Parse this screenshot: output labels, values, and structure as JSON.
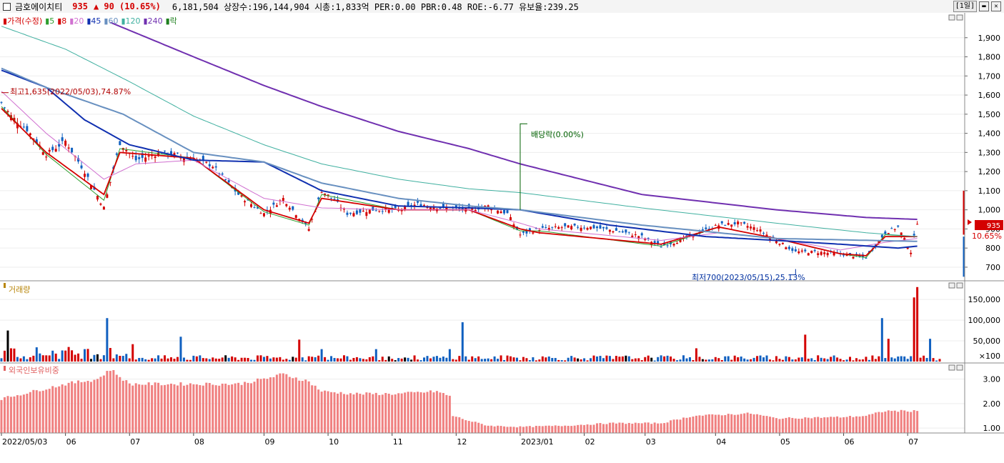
{
  "header": {
    "name": "금호에이치티",
    "price": "935",
    "change": "▲ 90 (10.65%)",
    "stats": "6,181,504  상장수:196,144,904 시총:1,833억 PER:0.00 PBR:0.48 ROE:-6.77 유보율:239.25",
    "period_button": "[1일]",
    "min_icon": "minimize-icon",
    "close_icon": "close-icon"
  },
  "price_panel": {
    "legend": [
      {
        "label": "가격(수정)",
        "color": "#d40000"
      },
      {
        "label": "5",
        "color": "#2e9e2e"
      },
      {
        "label": "8",
        "color": "#d40000"
      },
      {
        "label": "20",
        "color": "#d070d0"
      },
      {
        "label": "45",
        "color": "#1030b0"
      },
      {
        "label": "60",
        "color": "#6890c0"
      },
      {
        "label": "120",
        "color": "#40b0a0"
      },
      {
        "label": "240",
        "color": "#7030b0"
      },
      {
        "label": "락",
        "color": "#208020"
      }
    ],
    "high_annotation": "최고1,635(2022/05/03),74.87%",
    "low_annotation": "최저700(2023/05/15),25.13%",
    "dividend_annotation": "배당락(0.00%)",
    "current_price_label": "935",
    "current_change_label": "10.65%"
  },
  "volume_panel": {
    "title": "거래량"
  },
  "foreign_panel": {
    "title": "외국인보유비중"
  },
  "chart_data": [
    {
      "type": "line",
      "title": "가격(수정)",
      "y_ticks": [
        700,
        800,
        900,
        1000,
        1100,
        1200,
        1300,
        1400,
        1500,
        1600,
        1700,
        1800,
        1900
      ],
      "y_tick_labels": [
        "700",
        "800",
        "900",
        "1,000",
        "1,100",
        "1,200",
        "1,300",
        "1,400",
        "1,500",
        "1,600",
        "1,700",
        "1,800",
        "1,900"
      ],
      "ylim": [
        640,
        2000
      ],
      "x_tick_labels": [
        "2022/05/03",
        "06",
        "07",
        "08",
        "09",
        "10",
        "11",
        "12",
        "2023/01",
        "02",
        "03",
        "04",
        "05",
        "06",
        "07"
      ],
      "x_tick_index": [
        0,
        20,
        40,
        60,
        82,
        102,
        122,
        142,
        162,
        182,
        201,
        223,
        243,
        263,
        283
      ],
      "close_anchors": [
        [
          0,
          1560
        ],
        [
          3,
          1490
        ],
        [
          8,
          1420
        ],
        [
          14,
          1290
        ],
        [
          20,
          1360
        ],
        [
          26,
          1200
        ],
        [
          32,
          1010
        ],
        [
          37,
          1350
        ],
        [
          42,
          1260
        ],
        [
          50,
          1300
        ],
        [
          60,
          1270
        ],
        [
          66,
          1230
        ],
        [
          74,
          1080
        ],
        [
          82,
          980
        ],
        [
          88,
          1060
        ],
        [
          96,
          900
        ],
        [
          100,
          1100
        ],
        [
          104,
          1050
        ],
        [
          108,
          980
        ],
        [
          116,
          1000
        ],
        [
          124,
          1000
        ],
        [
          130,
          1030
        ],
        [
          138,
          1010
        ],
        [
          146,
          1000
        ],
        [
          152,
          1020
        ],
        [
          158,
          980
        ],
        [
          162,
          870
        ],
        [
          168,
          900
        ],
        [
          176,
          910
        ],
        [
          184,
          910
        ],
        [
          192,
          890
        ],
        [
          200,
          860
        ],
        [
          206,
          810
        ],
        [
          212,
          840
        ],
        [
          218,
          880
        ],
        [
          224,
          920
        ],
        [
          230,
          930
        ],
        [
          236,
          900
        ],
        [
          242,
          840
        ],
        [
          248,
          780
        ],
        [
          254,
          780
        ],
        [
          262,
          770
        ],
        [
          270,
          750
        ],
        [
          276,
          880
        ],
        [
          280,
          910
        ],
        [
          284,
          780
        ],
        [
          286,
          935
        ]
      ],
      "series": [
        {
          "name": "5",
          "anchors": [
            [
              0,
              1540
            ],
            [
              14,
              1290
            ],
            [
              32,
              1050
            ],
            [
              37,
              1320
            ],
            [
              60,
              1270
            ],
            [
              82,
              990
            ],
            [
              96,
              920
            ],
            [
              100,
              1080
            ],
            [
              124,
              1000
            ],
            [
              146,
              1000
            ],
            [
              162,
              890
            ],
            [
              168,
              890
            ],
            [
              206,
              810
            ],
            [
              224,
              910
            ],
            [
              242,
              850
            ],
            [
              262,
              770
            ],
            [
              270,
              750
            ],
            [
              276,
              870
            ],
            [
              286,
              860
            ]
          ]
        },
        {
          "name": "8",
          "anchors": [
            [
              0,
              1530
            ],
            [
              14,
              1300
            ],
            [
              32,
              1080
            ],
            [
              37,
              1300
            ],
            [
              60,
              1270
            ],
            [
              82,
              1000
            ],
            [
              96,
              930
            ],
            [
              100,
              1060
            ],
            [
              124,
              1000
            ],
            [
              146,
              1000
            ],
            [
              162,
              900
            ],
            [
              168,
              880
            ],
            [
              206,
              820
            ],
            [
              224,
              910
            ],
            [
              242,
              850
            ],
            [
              262,
              770
            ],
            [
              270,
              760
            ],
            [
              276,
              860
            ],
            [
              286,
              860
            ]
          ]
        },
        {
          "name": "20",
          "anchors": [
            [
              0,
              1620
            ],
            [
              14,
              1400
            ],
            [
              32,
              1160
            ],
            [
              42,
              1240
            ],
            [
              60,
              1260
            ],
            [
              82,
              1060
            ],
            [
              100,
              1010
            ],
            [
              124,
              1000
            ],
            [
              146,
              1000
            ],
            [
              162,
              930
            ],
            [
              168,
              900
            ],
            [
              206,
              840
            ],
            [
              224,
              880
            ],
            [
              242,
              850
            ],
            [
              262,
              790
            ],
            [
              276,
              830
            ],
            [
              286,
              850
            ]
          ]
        },
        {
          "name": "45",
          "anchors": [
            [
              0,
              1730
            ],
            [
              14,
              1640
            ],
            [
              26,
              1470
            ],
            [
              40,
              1340
            ],
            [
              60,
              1260
            ],
            [
              82,
              1250
            ],
            [
              100,
              1100
            ],
            [
              124,
              1020
            ],
            [
              146,
              1010
            ],
            [
              162,
              1000
            ],
            [
              190,
              920
            ],
            [
              220,
              860
            ],
            [
              242,
              840
            ],
            [
              262,
              820
            ],
            [
              280,
              800
            ],
            [
              286,
              810
            ]
          ]
        },
        {
          "name": "60",
          "anchors": [
            [
              0,
              1740
            ],
            [
              14,
              1640
            ],
            [
              38,
              1500
            ],
            [
              60,
              1300
            ],
            [
              82,
              1250
            ],
            [
              100,
              1140
            ],
            [
              124,
              1060
            ],
            [
              146,
              1020
            ],
            [
              162,
              1000
            ],
            [
              200,
              920
            ],
            [
              242,
              850
            ],
            [
              286,
              835
            ]
          ]
        },
        {
          "name": "120",
          "anchors": [
            [
              0,
              1960
            ],
            [
              20,
              1840
            ],
            [
              40,
              1670
            ],
            [
              60,
              1490
            ],
            [
              82,
              1340
            ],
            [
              100,
              1240
            ],
            [
              124,
              1160
            ],
            [
              146,
              1110
            ],
            [
              162,
              1090
            ],
            [
              200,
              1010
            ],
            [
              242,
              930
            ],
            [
              270,
              880
            ],
            [
              286,
              860
            ]
          ]
        },
        {
          "name": "240",
          "anchors": [
            [
              34,
              1980
            ],
            [
              60,
              1800
            ],
            [
              82,
              1650
            ],
            [
              100,
              1540
            ],
            [
              124,
              1410
            ],
            [
              146,
              1320
            ],
            [
              162,
              1240
            ],
            [
              200,
              1080
            ],
            [
              242,
              1000
            ],
            [
              270,
              960
            ],
            [
              286,
              950
            ]
          ]
        }
      ]
    },
    {
      "type": "bar",
      "title": "거래량",
      "y_ticks": [
        0,
        50000,
        100000,
        150000
      ],
      "y_tick_labels": [
        "×100",
        "50,000",
        "100,000",
        "150,000"
      ],
      "ylim": [
        0,
        190000
      ],
      "spikes": [
        [
          2,
          75000
        ],
        [
          33,
          105000
        ],
        [
          41,
          42000
        ],
        [
          56,
          60000
        ],
        [
          93,
          53000
        ],
        [
          100,
          30000
        ],
        [
          117,
          30000
        ],
        [
          140,
          30000
        ],
        [
          144,
          95000
        ],
        [
          217,
          32000
        ],
        [
          251,
          65000
        ],
        [
          275,
          105000
        ],
        [
          277,
          55000
        ],
        [
          285,
          155000
        ],
        [
          286,
          180000
        ],
        [
          290,
          55000
        ]
      ],
      "base_level": 8000
    },
    {
      "type": "bar",
      "title": "외국인보유비중",
      "y_ticks": [
        1.0,
        2.0,
        3.0
      ],
      "y_tick_labels": [
        "1.00",
        "2.00",
        "3.00"
      ],
      "ylim": [
        0.8,
        3.6
      ],
      "anchors": [
        [
          0,
          2.2
        ],
        [
          10,
          2.5
        ],
        [
          20,
          2.8
        ],
        [
          30,
          3.0
        ],
        [
          34,
          3.4
        ],
        [
          40,
          2.8
        ],
        [
          60,
          2.8
        ],
        [
          74,
          2.8
        ],
        [
          82,
          3.0
        ],
        [
          88,
          3.2
        ],
        [
          96,
          2.9
        ],
        [
          100,
          2.5
        ],
        [
          110,
          2.4
        ],
        [
          124,
          2.4
        ],
        [
          136,
          2.5
        ],
        [
          140,
          2.3
        ],
        [
          141,
          1.5
        ],
        [
          146,
          1.3
        ],
        [
          152,
          1.1
        ],
        [
          162,
          1.05
        ],
        [
          176,
          1.1
        ],
        [
          190,
          1.2
        ],
        [
          206,
          1.2
        ],
        [
          216,
          1.5
        ],
        [
          234,
          1.6
        ],
        [
          242,
          1.4
        ],
        [
          262,
          1.45
        ],
        [
          270,
          1.5
        ],
        [
          276,
          1.7
        ],
        [
          286,
          1.7
        ]
      ]
    }
  ]
}
